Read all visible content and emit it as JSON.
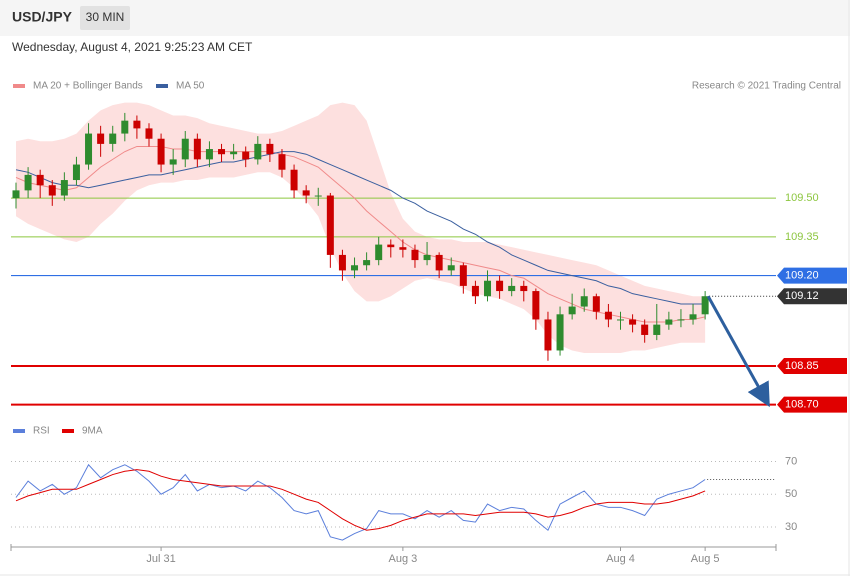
{
  "header": {
    "symbol": "USD/JPY",
    "interval": "30 MIN",
    "timestamp": "Wednesday, August 4, 2021 9:25:23 AM CET"
  },
  "chart_data": [
    {
      "type": "candlestick",
      "credit": "Research © 2021 Trading Central",
      "categories": [
        null,
        null,
        null,
        null,
        null,
        null,
        null,
        null,
        null,
        null,
        null,
        null,
        "Jul 31",
        null,
        null,
        null,
        null,
        null,
        null,
        null,
        null,
        null,
        null,
        null,
        null,
        null,
        null,
        null,
        null,
        null,
        null,
        null,
        "Aug 3",
        null,
        null,
        null,
        null,
        null,
        null,
        null,
        null,
        null,
        null,
        null,
        null,
        null,
        null,
        null,
        null,
        null,
        "Aug 4",
        null,
        null,
        null,
        null,
        null,
        null,
        "Aug 5"
      ],
      "open": [
        109.5,
        109.53,
        109.59,
        109.55,
        109.51,
        109.57,
        109.63,
        109.75,
        109.71,
        109.75,
        109.8,
        109.77,
        109.73,
        109.63,
        109.65,
        109.73,
        109.65,
        109.69,
        109.67,
        109.68,
        109.65,
        109.71,
        109.67,
        109.61,
        109.53,
        109.51,
        109.51,
        109.28,
        109.22,
        109.24,
        109.26,
        109.32,
        109.31,
        109.3,
        109.26,
        109.28,
        109.22,
        109.24,
        109.16,
        109.12,
        109.18,
        109.14,
        109.16,
        109.14,
        109.03,
        108.91,
        109.05,
        109.08,
        109.12,
        109.06,
        109.03,
        109.03,
        109.01,
        108.97,
        109.01,
        109.03,
        109.03,
        109.05
      ],
      "high": [
        109.56,
        109.62,
        109.61,
        109.57,
        109.6,
        109.66,
        109.79,
        109.78,
        109.78,
        109.83,
        109.82,
        109.79,
        109.75,
        109.69,
        109.76,
        109.75,
        109.72,
        109.71,
        109.71,
        109.7,
        109.74,
        109.73,
        109.69,
        109.63,
        109.55,
        109.54,
        109.52,
        109.3,
        109.27,
        109.29,
        109.35,
        109.34,
        109.34,
        109.32,
        109.33,
        109.29,
        109.27,
        109.25,
        109.18,
        109.22,
        109.2,
        109.19,
        109.18,
        109.15,
        109.06,
        109.08,
        109.13,
        109.15,
        109.13,
        109.09,
        109.06,
        109.05,
        109.03,
        109.09,
        109.06,
        109.07,
        109.09,
        109.14
      ],
      "low": [
        109.46,
        109.5,
        109.5,
        109.47,
        109.49,
        109.55,
        109.61,
        109.66,
        109.68,
        109.72,
        109.73,
        109.7,
        109.6,
        109.59,
        109.62,
        109.62,
        109.62,
        109.64,
        109.65,
        109.62,
        109.63,
        109.64,
        109.58,
        109.5,
        109.48,
        109.47,
        109.23,
        109.18,
        109.19,
        109.22,
        109.24,
        109.27,
        109.27,
        109.23,
        109.24,
        109.19,
        109.2,
        109.13,
        109.09,
        109.1,
        109.11,
        109.12,
        109.1,
        108.99,
        108.87,
        108.89,
        109.03,
        109.06,
        109.03,
        109.0,
        108.99,
        108.98,
        108.94,
        108.95,
        108.99,
        109.0,
        109.01,
        109.03
      ],
      "close": [
        109.53,
        109.59,
        109.55,
        109.51,
        109.57,
        109.63,
        109.75,
        109.71,
        109.75,
        109.8,
        109.77,
        109.73,
        109.63,
        109.65,
        109.73,
        109.65,
        109.69,
        109.67,
        109.68,
        109.65,
        109.71,
        109.67,
        109.61,
        109.53,
        109.51,
        109.51,
        109.28,
        109.22,
        109.24,
        109.26,
        109.32,
        109.31,
        109.3,
        109.26,
        109.28,
        109.22,
        109.24,
        109.16,
        109.12,
        109.18,
        109.14,
        109.16,
        109.14,
        109.03,
        108.91,
        109.05,
        109.08,
        109.12,
        109.06,
        109.03,
        109.03,
        109.01,
        108.97,
        109.01,
        109.03,
        109.03,
        109.05,
        109.12
      ],
      "up_color": "#2e8b2e",
      "down_color": "#cc0000",
      "overlays": [
        {
          "name": "MA 20 + Bollinger Bands",
          "color": "#f08a8a",
          "band_color": "#fde0df",
          "values": [
            109.58,
            109.56,
            109.55,
            109.54,
            109.53,
            109.54,
            109.58,
            109.62,
            109.65,
            109.68,
            109.7,
            109.7,
            109.7,
            109.69,
            109.69,
            109.68,
            109.68,
            109.68,
            109.68,
            109.68,
            109.68,
            109.68,
            109.67,
            109.66,
            109.64,
            109.62,
            109.58,
            109.54,
            109.5,
            109.45,
            109.41,
            109.37,
            109.33,
            109.3,
            109.28,
            109.27,
            109.26,
            109.25,
            109.24,
            109.23,
            109.22,
            109.2,
            109.19,
            109.16,
            109.13,
            109.11,
            109.09,
            109.07,
            109.06,
            109.05,
            109.04,
            109.03,
            109.02,
            109.02,
            109.02,
            109.03,
            109.03,
            109.04
          ],
          "upper": [
            109.72,
            109.73,
            109.72,
            109.72,
            109.73,
            109.75,
            109.8,
            109.84,
            109.86,
            109.87,
            109.87,
            109.86,
            109.84,
            109.82,
            109.82,
            109.81,
            109.79,
            109.78,
            109.77,
            109.76,
            109.75,
            109.75,
            109.76,
            109.78,
            109.8,
            109.82,
            109.86,
            109.87,
            109.86,
            109.8,
            109.66,
            109.52,
            109.42,
            109.37,
            109.35,
            109.34,
            109.34,
            109.33,
            109.33,
            109.33,
            109.32,
            109.31,
            109.3,
            109.29,
            109.28,
            109.27,
            109.26,
            109.25,
            109.24,
            109.22,
            109.2,
            109.18,
            109.16,
            109.15,
            109.14,
            109.13,
            109.12,
            109.12
          ],
          "lower": [
            109.43,
            109.4,
            109.38,
            109.36,
            109.34,
            109.33,
            109.35,
            109.4,
            109.44,
            109.49,
            109.53,
            109.55,
            109.56,
            109.56,
            109.57,
            109.57,
            109.58,
            109.58,
            109.58,
            109.59,
            109.6,
            109.6,
            109.58,
            109.54,
            109.49,
            109.43,
            109.31,
            109.21,
            109.14,
            109.1,
            109.1,
            109.12,
            109.15,
            109.18,
            109.19,
            109.18,
            109.17,
            109.15,
            109.13,
            109.12,
            109.11,
            109.09,
            109.07,
            109.03,
            108.97,
            108.93,
            108.91,
            108.9,
            108.9,
            108.9,
            108.9,
            108.91,
            108.91,
            108.92,
            108.93,
            108.94,
            108.94,
            108.94
          ]
        },
        {
          "name": "MA 50",
          "color": "#3a5f9f",
          "values": [
            109.61,
            109.6,
            109.58,
            109.56,
            109.55,
            109.55,
            109.54,
            109.55,
            109.56,
            109.57,
            109.58,
            109.59,
            109.59,
            109.6,
            109.61,
            109.62,
            109.63,
            109.64,
            109.64,
            109.65,
            109.66,
            109.67,
            109.68,
            109.68,
            109.67,
            109.65,
            109.63,
            109.61,
            109.59,
            109.57,
            109.55,
            109.53,
            109.5,
            109.48,
            109.45,
            109.43,
            109.41,
            109.38,
            109.36,
            109.33,
            109.31,
            109.28,
            109.26,
            109.24,
            109.22,
            109.21,
            109.2,
            109.19,
            109.18,
            109.16,
            109.15,
            109.13,
            109.12,
            109.11,
            109.1,
            109.09,
            109.09,
            109.09
          ]
        }
      ],
      "ylim": [
        108.66,
        109.88
      ],
      "levels": [
        {
          "value": 109.5,
          "label": "109.50",
          "color": "#8cc63f",
          "box": false,
          "width": 1
        },
        {
          "value": 109.35,
          "label": "109.35",
          "color": "#8cc63f",
          "box": false,
          "width": 1
        },
        {
          "value": 109.2,
          "label": "109.20",
          "color": "#2f6fe4",
          "box": true,
          "width": 1.2
        },
        {
          "value": 109.12,
          "label": "109.12",
          "color": "#333333",
          "box": true,
          "width": 1,
          "dotted": true
        },
        {
          "value": 108.85,
          "label": "108.85",
          "color": "#e00000",
          "box": true,
          "width": 2
        },
        {
          "value": 108.7,
          "label": "108.70",
          "color": "#e00000",
          "box": true,
          "width": 2
        }
      ]
    },
    {
      "type": "line",
      "series": [
        {
          "name": "RSI",
          "color": "#5b7fdb",
          "values": [
            48,
            58,
            52,
            56,
            50,
            54,
            68,
            60,
            65,
            68,
            64,
            58,
            50,
            54,
            62,
            52,
            56,
            54,
            55,
            52,
            58,
            54,
            48,
            40,
            38,
            40,
            24,
            22,
            26,
            29,
            40,
            38,
            38,
            35,
            40,
            36,
            40,
            34,
            33,
            44,
            40,
            42,
            41,
            34,
            28,
            44,
            48,
            52,
            44,
            42,
            42,
            40,
            37,
            47,
            50,
            52,
            54,
            59
          ]
        },
        {
          "name": "9MA",
          "color": "#e00000",
          "values": [
            46,
            49,
            51,
            53,
            53,
            53,
            56,
            59,
            62,
            64,
            65,
            64,
            61,
            59,
            58,
            57,
            56,
            55,
            55,
            55,
            55,
            55,
            53,
            50,
            47,
            45,
            40,
            35,
            31,
            28,
            29,
            31,
            34,
            36,
            38,
            38,
            38,
            38,
            37,
            38,
            39,
            39,
            39,
            38,
            36,
            37,
            39,
            42,
            44,
            45,
            45,
            45,
            44,
            44,
            45,
            47,
            49,
            52
          ]
        }
      ],
      "ylim": [
        19,
        77
      ],
      "yticks": [
        30,
        50,
        70
      ]
    }
  ]
}
